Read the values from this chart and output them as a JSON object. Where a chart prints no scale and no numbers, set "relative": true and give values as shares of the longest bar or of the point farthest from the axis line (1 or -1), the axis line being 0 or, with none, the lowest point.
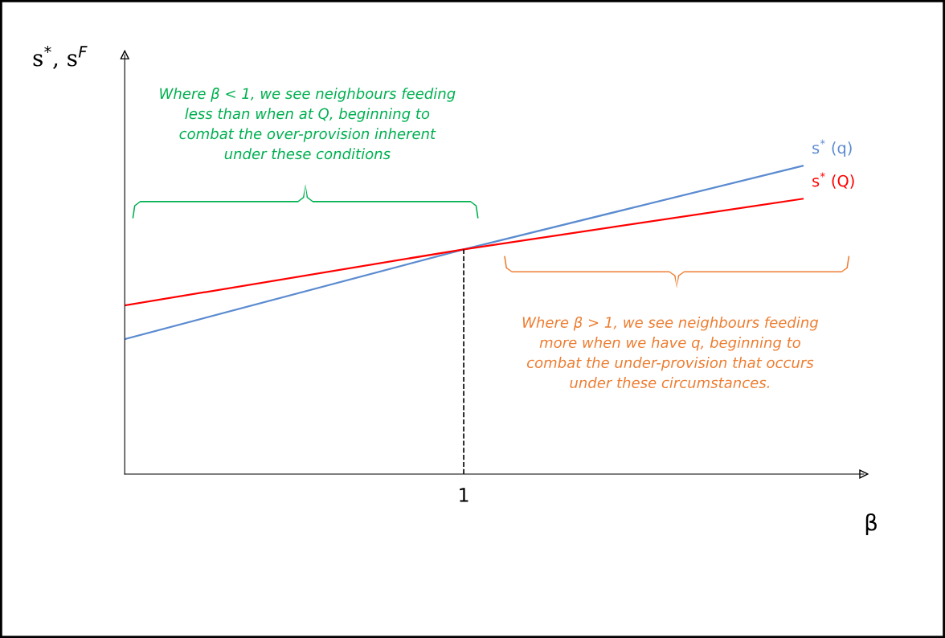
{
  "chart_data": {
    "type": "line",
    "relative": true,
    "xlabel": "β",
    "ylabel": "s$^{*}$, s$^{F}$",
    "categories": [
      null,
      null,
      null
    ],
    "series": [
      {
        "name": "s$^{*}$ (q)",
        "color": "#5b8bd0",
        "values": [
          0.4375,
          0.729,
          1
        ]
      },
      {
        "name": "s$^{*}$ (Q)",
        "color": "#ff0000",
        "values": [
          0.547,
          0.729,
          0.893
        ]
      }
    ],
    "ref_lines": [
      {
        "axis": "x",
        "label": "1",
        "color": "#000000",
        "line_style": "dashed"
      }
    ],
    "annotations": [
      "Where β < 1, we see neighbours feeding\nless than when at Q, beginning to\ncombat the over-provision inherent\nunder these conditions",
      "Where β > 1, we see neighbours feeding\nmore when we have q, beginning to\ncombat the under-provision that occurs\nunder these circumstances."
    ],
    "legend": false,
    "marker": "none",
    "line_style": "solid"
  }
}
